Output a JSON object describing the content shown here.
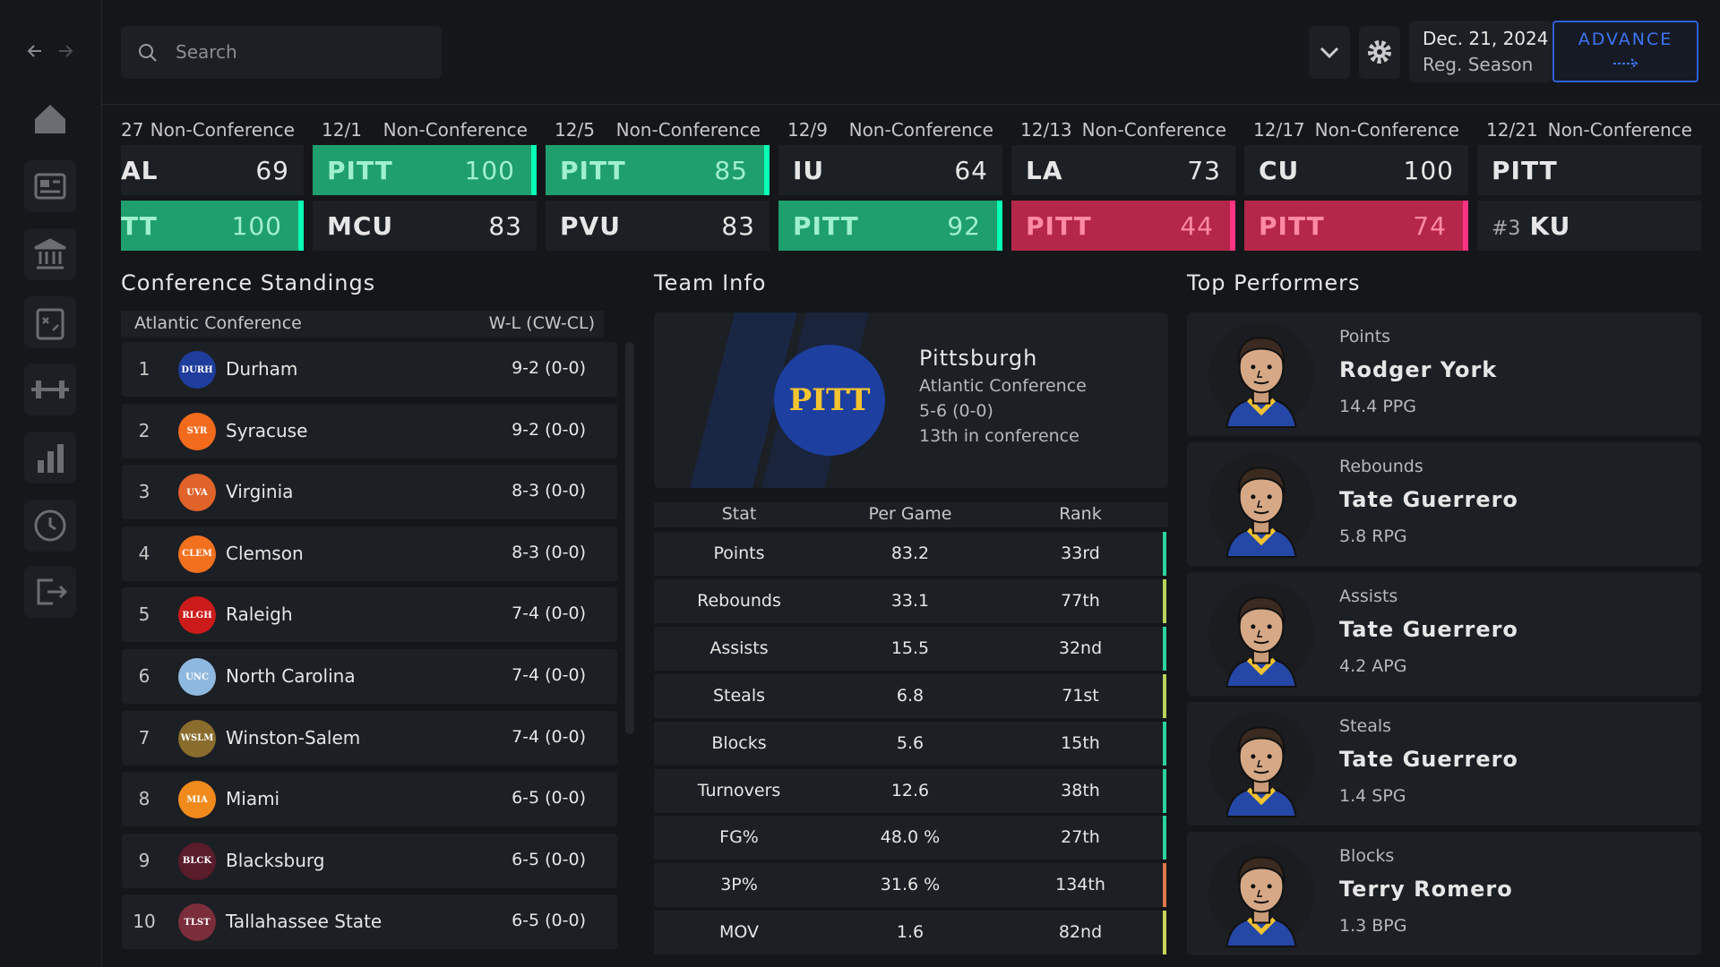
{
  "header": {
    "search_placeholder": "Search",
    "date": "Dec. 21, 2024",
    "phase": "Reg. Season",
    "advance": "ADVANCE"
  },
  "schedule": {
    "games": [
      {
        "date": "27",
        "type": "Non-Conference",
        "teams": [
          {
            "name": "AL",
            "score": 69
          },
          {
            "name": "TT",
            "score": 100,
            "color": "#1f9e6e"
          }
        ]
      },
      {
        "date": "12/1",
        "type": "Non-Conference",
        "teams": [
          {
            "name": "PITT",
            "score": 100,
            "color": "#1f9e6e"
          },
          {
            "name": "MCU",
            "score": 83
          }
        ]
      },
      {
        "date": "12/5",
        "type": "Non-Conference",
        "teams": [
          {
            "name": "PITT",
            "score": 85,
            "color": "#1f9e6e"
          },
          {
            "name": "PVU",
            "score": 83
          }
        ]
      },
      {
        "date": "12/9",
        "type": "Non-Conference",
        "teams": [
          {
            "name": "IU",
            "score": 64
          },
          {
            "name": "PITT",
            "score": 92,
            "color": "#1f9e6e"
          }
        ]
      },
      {
        "date": "12/13",
        "type": "Non-Conference",
        "teams": [
          {
            "name": "LA",
            "score": 73
          },
          {
            "name": "PITT",
            "score": 44,
            "color": "#b4264a"
          }
        ]
      },
      {
        "date": "12/17",
        "type": "Non-Conference",
        "teams": [
          {
            "name": "CU",
            "score": 100
          },
          {
            "name": "PITT",
            "score": 74,
            "color": "#b4264a"
          }
        ]
      },
      {
        "date": "12/21",
        "type": "Non-Conference",
        "teams": [
          {
            "name": "PITT"
          },
          {
            "rank": "#3",
            "name": "KU"
          }
        ]
      }
    ]
  },
  "standings": {
    "title": "Conference Standings",
    "conference": "Atlantic Conference",
    "record_header": "W-L (CW-CL)",
    "rows": [
      {
        "rank": 1,
        "logo": "DURH",
        "name": "Durham",
        "record": "9-2 (0-0)",
        "logo_color": "#1f3d9c"
      },
      {
        "rank": 2,
        "logo": "SYR",
        "name": "Syracuse",
        "record": "9-2 (0-0)",
        "logo_color": "#f26a1b"
      },
      {
        "rank": 3,
        "logo": "UVA",
        "name": "Virginia",
        "record": "8-3 (0-0)",
        "logo_color": "#e0632a"
      },
      {
        "rank": 4,
        "logo": "CLEM",
        "name": "Clemson",
        "record": "8-3 (0-0)",
        "logo_color": "#f3701f"
      },
      {
        "rank": 5,
        "logo": "RLGH",
        "name": "Raleigh",
        "record": "7-4 (0-0)",
        "logo_color": "#cc1b1b"
      },
      {
        "rank": 6,
        "logo": "UNC",
        "name": "North Carolina",
        "record": "7-4 (0-0)",
        "logo_color": "#8fb8e0"
      },
      {
        "rank": 7,
        "logo": "WSLM",
        "name": "Winston-Salem",
        "record": "7-4 (0-0)",
        "logo_color": "#8a6d2d"
      },
      {
        "rank": 8,
        "logo": "MIA",
        "name": "Miami",
        "record": "6-5 (0-0)",
        "logo_color": "#f08a1c"
      },
      {
        "rank": 9,
        "logo": "BLCK",
        "name": "Blacksburg",
        "record": "6-5 (0-0)",
        "logo_color": "#5a1b2b"
      },
      {
        "rank": 10,
        "logo": "TLST",
        "name": "Tallahassee State",
        "record": "6-5 (0-0)",
        "logo_color": "#7b2d3b"
      }
    ]
  },
  "team_info": {
    "title": "Team Info",
    "logo": "PITT",
    "name": "Pittsburgh",
    "conference": "Atlantic Conference",
    "record": "5-6 (0-0)",
    "standing": "13th in conference",
    "columns": [
      "Stat",
      "Per Game",
      "Rank"
    ],
    "rows": [
      {
        "stat": "Points",
        "per_game": "83.2",
        "rank": "33rd",
        "color": "#2ad39a"
      },
      {
        "stat": "Rebounds",
        "per_game": "33.1",
        "rank": "77th",
        "color": "#b7d35a"
      },
      {
        "stat": "Assists",
        "per_game": "15.5",
        "rank": "32nd",
        "color": "#2ad39a"
      },
      {
        "stat": "Steals",
        "per_game": "6.8",
        "rank": "71st",
        "color": "#b7d35a"
      },
      {
        "stat": "Blocks",
        "per_game": "5.6",
        "rank": "15th",
        "color": "#2ad39a"
      },
      {
        "stat": "Turnovers",
        "per_game": "12.6",
        "rank": "38th",
        "color": "#2ad39a"
      },
      {
        "stat": "FG%",
        "per_game": "48.0 %",
        "rank": "27th",
        "color": "#2ad39a"
      },
      {
        "stat": "3P%",
        "per_game": "31.6 %",
        "rank": "134th",
        "color": "#e0784a"
      },
      {
        "stat": "MOV",
        "per_game": "1.6",
        "rank": "82nd",
        "color": "#c9d35a"
      }
    ]
  },
  "top_performers": {
    "title": "Top Performers",
    "players": [
      {
        "category": "Points",
        "name": "Rodger York",
        "stat": "14.4 PPG"
      },
      {
        "category": "Rebounds",
        "name": "Tate Guerrero",
        "stat": "5.8 RPG"
      },
      {
        "category": "Assists",
        "name": "Tate Guerrero",
        "stat": "4.2 APG"
      },
      {
        "category": "Steals",
        "name": "Tate Guerrero",
        "stat": "1.4 SPG"
      },
      {
        "category": "Blocks",
        "name": "Terry Romero",
        "stat": "1.3 BPG"
      }
    ]
  }
}
